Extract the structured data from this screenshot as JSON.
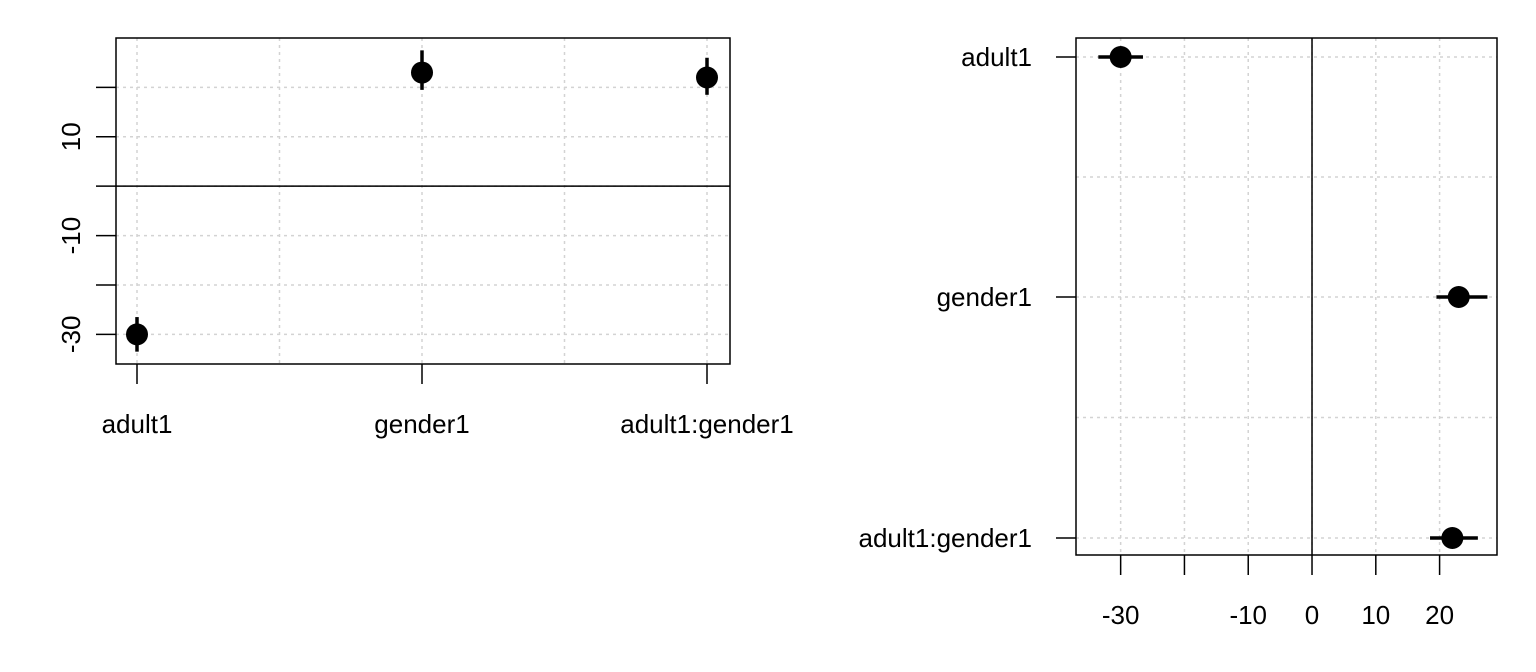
{
  "chart_data": [
    {
      "type": "scatter",
      "orientation": "vertical",
      "categories": [
        "adult1",
        "gender1",
        "adult1:gender1"
      ],
      "estimates": [
        -30,
        23,
        22
      ],
      "intervals": [
        [
          -33.5,
          -26.5
        ],
        [
          19.5,
          27.5
        ],
        [
          18.5,
          26
        ]
      ],
      "xlabel": "",
      "ylabel": "",
      "ylim": [
        -36,
        30
      ],
      "yticks": [
        -30,
        -10,
        10
      ],
      "minor_ticks": [
        -20,
        0,
        20
      ],
      "reference_line": 0,
      "grid": true
    },
    {
      "type": "scatter",
      "orientation": "horizontal",
      "categories": [
        "adult1",
        "gender1",
        "adult1:gender1"
      ],
      "estimates": [
        -30,
        23,
        22
      ],
      "intervals": [
        [
          -33.5,
          -26.5
        ],
        [
          19.5,
          27.5
        ],
        [
          18.5,
          26
        ]
      ],
      "xlabel": "",
      "ylabel": "",
      "xlim": [
        -37,
        29
      ],
      "xticks": [
        -30,
        -10,
        0,
        10,
        20
      ],
      "minor_ticks": [
        -20
      ],
      "reference_line": 0,
      "grid": true
    }
  ]
}
